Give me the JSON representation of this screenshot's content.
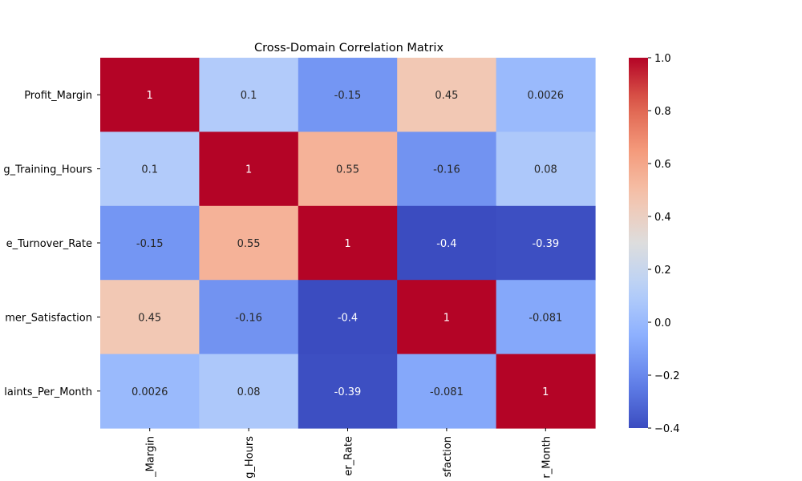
{
  "chart_data": {
    "type": "heatmap",
    "title": "Cross-Domain Correlation Matrix",
    "row_labels": [
      "Profit_Margin",
      "g_Training_Hours",
      "e_Turnover_Rate",
      "mer_Satisfaction",
      "laints_Per_Month"
    ],
    "col_labels": [
      "_Margin",
      "g_Hours",
      "er_Rate",
      "sfaction",
      "r_Month"
    ],
    "values": [
      [
        1,
        0.1,
        -0.15,
        0.45,
        0.0026
      ],
      [
        0.1,
        1,
        0.55,
        -0.16,
        0.08
      ],
      [
        -0.15,
        0.55,
        1,
        -0.4,
        -0.39
      ],
      [
        0.45,
        -0.16,
        -0.4,
        1,
        -0.081
      ],
      [
        0.0026,
        0.08,
        -0.39,
        -0.081,
        1
      ]
    ],
    "cell_labels": [
      [
        "1",
        "0.1",
        "-0.15",
        "0.45",
        "0.0026"
      ],
      [
        "0.1",
        "1",
        "0.55",
        "-0.16",
        "0.08"
      ],
      [
        "-0.15",
        "0.55",
        "1",
        "-0.4",
        "-0.39"
      ],
      [
        "0.45",
        "-0.16",
        "-0.4",
        "1",
        "-0.081"
      ],
      [
        "0.0026",
        "0.08",
        "-0.39",
        "-0.081",
        "1"
      ]
    ],
    "colormap": "coolwarm",
    "vmin": -0.4,
    "vmax": 1.0,
    "colorbar_ticks": [
      1.0,
      0.8,
      0.6,
      0.4,
      0.2,
      0.0,
      -0.2,
      -0.4
    ],
    "colorbar_tick_labels": [
      "1.0",
      "0.8",
      "0.6",
      "0.4",
      "0.2",
      "0.0",
      "−0.2",
      "−0.4"
    ]
  }
}
